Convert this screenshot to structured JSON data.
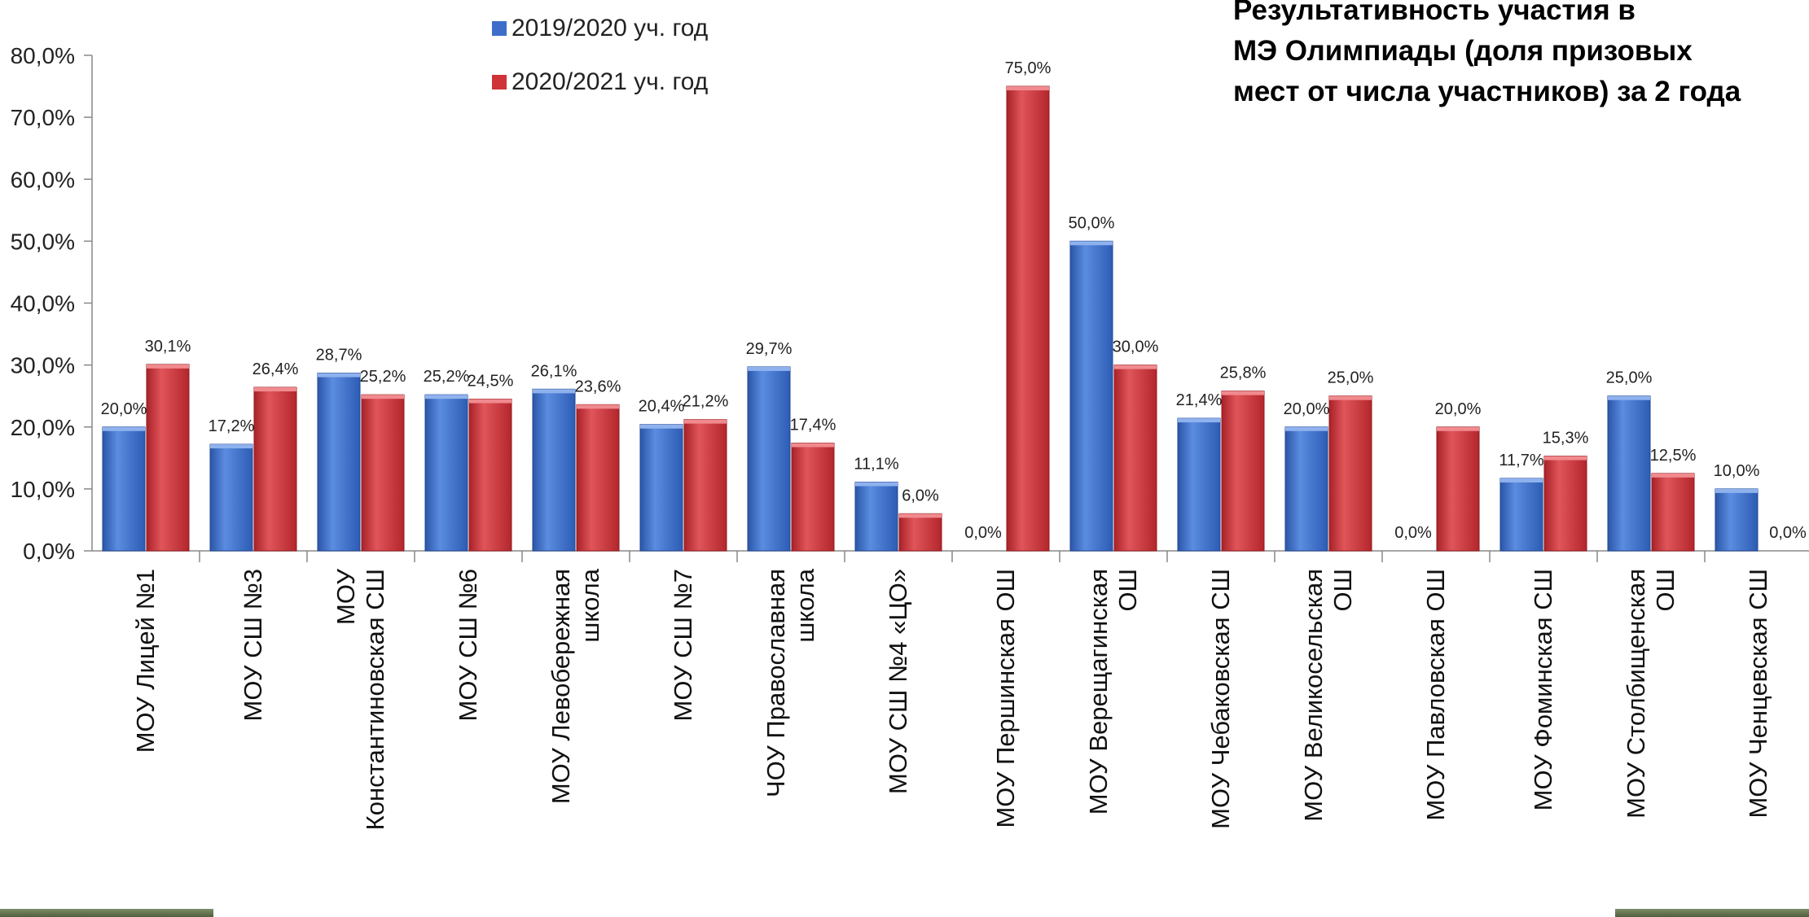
{
  "title_lines": [
    "Результативность участия в",
    "МЭ Олимпиады (доля призовых",
    "мест от числа участников) за 2 года"
  ],
  "legend": [
    {
      "label": "2019/2020 уч. год",
      "color": "#3d6fca"
    },
    {
      "label": "2020/2021 уч. год",
      "color": "#cf3338"
    }
  ],
  "chart_data": {
    "type": "bar",
    "categories": [
      [
        "МОУ Лицей №1"
      ],
      [
        "МОУ СШ №3"
      ],
      [
        "МОУ",
        "Константиновская СШ"
      ],
      [
        "МОУ СШ №6"
      ],
      [
        "МОУ Левобережная",
        "школа"
      ],
      [
        "МОУ СШ №7"
      ],
      [
        "ЧОУ Православная",
        "школа"
      ],
      [
        "МОУ СШ №4 «ЦО»"
      ],
      [
        "МОУ Першинская ОШ"
      ],
      [
        "МОУ Верещагинская",
        "ОШ"
      ],
      [
        "МОУ Чебаковская СШ"
      ],
      [
        "МОУ Великосельская",
        "ОШ"
      ],
      [
        "МОУ Павловская ОШ"
      ],
      [
        "МОУ Фоминская СШ"
      ],
      [
        "МОУ Столбищенская",
        "ОШ"
      ],
      [
        "МОУ Ченцевская СШ"
      ]
    ],
    "series": [
      {
        "name": "2019/2020 уч. год",
        "color": "#3d6fca",
        "values": [
          20.0,
          17.2,
          28.7,
          25.2,
          26.1,
          20.4,
          29.7,
          11.1,
          0.0,
          50.0,
          21.4,
          20.0,
          0.0,
          11.7,
          25.0,
          10.0
        ],
        "labels": [
          "20,0%",
          "17,2%",
          "28,7%",
          "25,2%",
          "26,1%",
          "20,4%",
          "29,7%",
          "11,1%",
          "0,0%",
          "50,0%",
          "21,4%",
          "20,0%",
          "0,0%",
          "11,7%",
          "25,0%",
          "10,0%"
        ]
      },
      {
        "name": "2020/2021 уч. год",
        "color": "#cf3338",
        "values": [
          30.1,
          26.4,
          25.2,
          24.5,
          23.6,
          21.2,
          17.4,
          6.0,
          75.0,
          30.0,
          25.8,
          25.0,
          20.0,
          15.3,
          12.5,
          0.0
        ],
        "labels": [
          "30,1%",
          "26,4%",
          "25,2%",
          "24,5%",
          "23,6%",
          "21,2%",
          "17,4%",
          "6,0%",
          "75,0%",
          "30,0%",
          "25,8%",
          "25,0%",
          "20,0%",
          "15,3%",
          "12,5%",
          "0,0%"
        ]
      }
    ],
    "y_ticks": [
      "0,0%",
      "10,0%",
      "20,0%",
      "30,0%",
      "40,0%",
      "50,0%",
      "60,0%",
      "70,0%",
      "80,0%"
    ],
    "ylim": [
      0,
      80
    ],
    "grid": false,
    "legend_position": "top-center"
  }
}
